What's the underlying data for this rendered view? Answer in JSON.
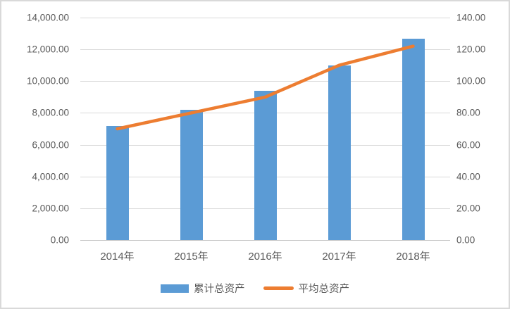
{
  "chart_data": {
    "type": "combo",
    "categories": [
      "2014年",
      "2015年",
      "2016年",
      "2017年",
      "2018年"
    ],
    "series": [
      {
        "name": "累计总资产",
        "type": "bar",
        "axis": "left",
        "color": "#5B9BD5",
        "values": [
          7200,
          8200,
          9400,
          11000,
          12650
        ]
      },
      {
        "name": "平均总资产",
        "type": "line",
        "axis": "right",
        "color": "#ED7D31",
        "values": [
          70,
          80,
          90,
          110,
          122
        ]
      }
    ],
    "left_axis": {
      "min": 0,
      "max": 14000,
      "step": 2000,
      "tick_labels": [
        "14,000.00",
        "12,000.00",
        "10,000.00",
        "8,000.00",
        "6,000.00",
        "4,000.00",
        "2,000.00",
        "0.00"
      ]
    },
    "right_axis": {
      "min": 0,
      "max": 140,
      "step": 20,
      "tick_labels": [
        "140.00",
        "120.00",
        "100.00",
        "80.00",
        "60.00",
        "40.00",
        "20.00",
        "0.00"
      ]
    },
    "grid": true,
    "legend_position": "bottom",
    "colors": {
      "bar": "#5B9BD5",
      "line": "#ED7D31",
      "gridline": "#d9d9d9",
      "text": "#595959",
      "border": "#d9d9d9"
    }
  }
}
